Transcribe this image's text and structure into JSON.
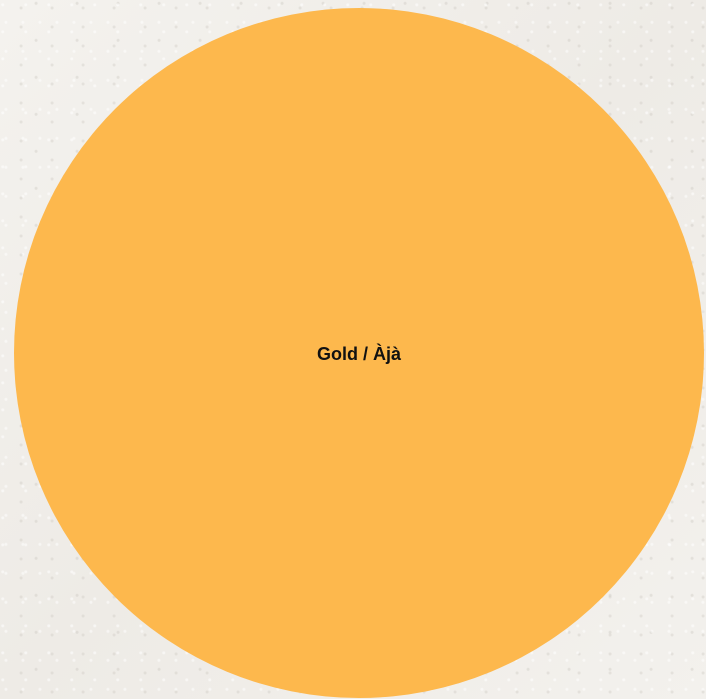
{
  "circle": {
    "label": "Gold / Àjà",
    "fill_color": "#fdb84d"
  },
  "background_color": "#f2f0ec"
}
